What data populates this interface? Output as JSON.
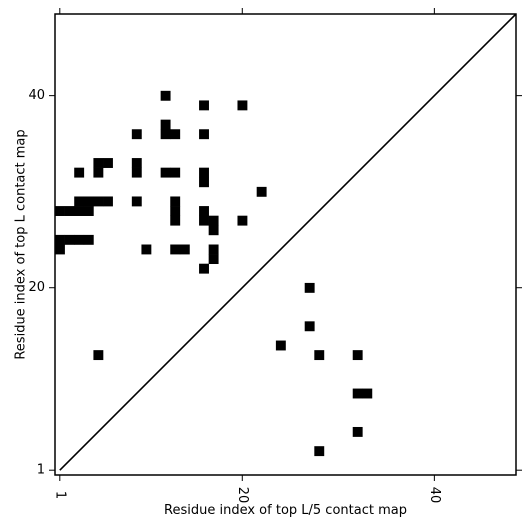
{
  "chart_data": {
    "type": "heatmap",
    "xlabel": "Residue index of top L/5 contact map",
    "ylabel": "Residue index of top L contact map",
    "xlim": [
      0.5,
      48.5
    ],
    "ylim": [
      0.5,
      48.5
    ],
    "x_ticks": [
      1,
      20,
      40
    ],
    "y_ticks": [
      1,
      20,
      40
    ],
    "x_tick_labels": [
      "1",
      "20",
      "40"
    ],
    "y_tick_labels": [
      "1",
      "20",
      "40"
    ],
    "diagonal": true,
    "grid": false,
    "colors": {
      "cell": "#000000",
      "background": "#ffffff",
      "line": "#000000"
    },
    "upper_cells": [
      [
        12,
        40
      ],
      [
        16,
        39
      ],
      [
        20,
        39
      ],
      [
        12,
        37
      ],
      [
        9,
        36
      ],
      [
        12,
        36
      ],
      [
        13,
        36
      ],
      [
        16,
        36
      ],
      [
        5,
        33
      ],
      [
        6,
        33
      ],
      [
        9,
        33
      ],
      [
        3,
        32
      ],
      [
        5,
        32
      ],
      [
        9,
        32
      ],
      [
        12,
        32
      ],
      [
        13,
        32
      ],
      [
        16,
        32
      ],
      [
        16,
        31
      ],
      [
        22,
        30
      ],
      [
        3,
        29
      ],
      [
        4,
        29
      ],
      [
        5,
        29
      ],
      [
        6,
        29
      ],
      [
        9,
        29
      ],
      [
        13,
        29
      ],
      [
        1,
        28
      ],
      [
        2,
        28
      ],
      [
        3,
        28
      ],
      [
        4,
        28
      ],
      [
        13,
        28
      ],
      [
        16,
        28
      ],
      [
        13,
        27
      ],
      [
        16,
        27
      ],
      [
        17,
        27
      ],
      [
        20,
        27
      ],
      [
        17,
        26
      ],
      [
        1,
        25
      ],
      [
        2,
        25
      ],
      [
        3,
        25
      ],
      [
        4,
        25
      ],
      [
        1,
        24
      ],
      [
        10,
        24
      ],
      [
        13,
        24
      ],
      [
        14,
        24
      ],
      [
        17,
        24
      ],
      [
        17,
        23
      ],
      [
        16,
        22
      ]
    ],
    "lower_cells": [
      [
        27,
        20
      ],
      [
        27,
        16
      ],
      [
        24,
        14
      ],
      [
        5,
        13
      ],
      [
        28,
        13
      ],
      [
        32,
        13
      ],
      [
        32,
        9
      ],
      [
        33,
        9
      ],
      [
        32,
        5
      ],
      [
        28,
        3
      ]
    ]
  }
}
